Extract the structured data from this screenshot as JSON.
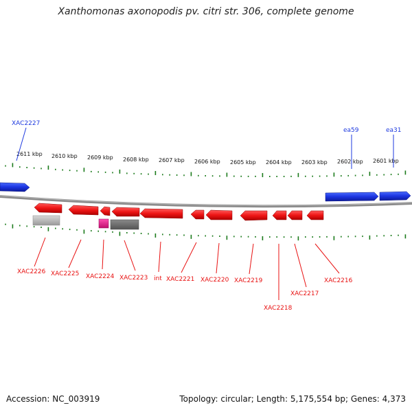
{
  "title": "Xanthomonas axonopodis pv. citri str. 306, complete genome",
  "footer": {
    "accession": "Accession: NC_003919",
    "topology": "Topology: circular; Length: 5,175,554 bp; Genes: 4,373"
  },
  "ruler": {
    "labels": [
      "2611 kbp",
      "2610 kbp",
      "2609 kbp",
      "2608 kbp",
      "2607 kbp",
      "2606 kbp",
      "2605 kbp",
      "2604 kbp",
      "2603 kbp",
      "2602 kbp",
      "2601 kbp"
    ]
  },
  "genes_top": [
    {
      "label": "XAC2227",
      "color": "#1e3adf"
    },
    {
      "label": "ea59",
      "color": "#1e3adf"
    },
    {
      "label": "ea31",
      "color": "#1e3adf"
    }
  ],
  "genes_bottom": [
    {
      "label": "XAC2226",
      "color": "#e81010"
    },
    {
      "label": "XAC2225",
      "color": "#e81010"
    },
    {
      "label": "XAC2224",
      "color": "#e81010"
    },
    {
      "label": "XAC2223",
      "color": "#e81010"
    },
    {
      "label": "int",
      "color": "#e81010"
    },
    {
      "label": "XAC2221",
      "color": "#e81010"
    },
    {
      "label": "XAC2220",
      "color": "#e81010"
    },
    {
      "label": "XAC2219",
      "color": "#e81010"
    },
    {
      "label": "XAC2218",
      "color": "#e81010"
    },
    {
      "label": "XAC2217",
      "color": "#e81010"
    },
    {
      "label": "XAC2216",
      "color": "#e81010"
    }
  ],
  "colors": {
    "forward_gene": "#1e3adf",
    "reverse_gene": "#e81010",
    "tick": "#1a7a1a",
    "backbone": "#777777",
    "misc_feature_gray": "#a0a0a0",
    "misc_feature_dark": "#666666",
    "misc_feature_pink": "#e0208a"
  }
}
